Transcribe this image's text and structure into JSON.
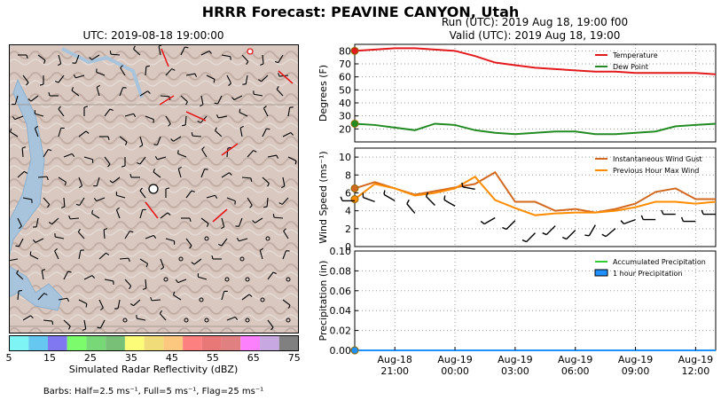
{
  "suptitle": "HRRR Forecast: PEAVINE CANYON, Utah",
  "map": {
    "title": "UTC: 2019-08-18 19:00:00",
    "colorbar": {
      "ticks": [
        "5",
        "15",
        "25",
        "35",
        "45",
        "55",
        "65",
        "75"
      ],
      "colors": [
        "#7ff4f4",
        "#66c8f0",
        "#8078f0",
        "#7cfc6c",
        "#78d878",
        "#78c078",
        "#fcfc78",
        "#f0dc78",
        "#fcc880",
        "#fc8080",
        "#e87878",
        "#e08080",
        "#fc80fc",
        "#c8a8e0",
        "#808080"
      ],
      "label": "Simulated Radar Reflectivity (dBZ)"
    },
    "barb_note": "Barbs: Half=2.5 ms⁻¹, Full=5 ms⁻¹, Flag=25 ms⁻¹"
  },
  "run": {
    "line1": "Run (UTC): 2019 Aug 18, 19:00 f00",
    "line2": "Valid (UTC): 2019 Aug 18, 19:00"
  },
  "chart_data": [
    {
      "type": "line",
      "ylabel": "Degrees (F)",
      "ylim": [
        10,
        85
      ],
      "yticks": [
        20,
        30,
        40,
        50,
        60,
        70,
        80
      ],
      "grid": true,
      "legend": "top-right",
      "series": [
        {
          "name": "Temperature",
          "color": "#e31a1c",
          "x": [
            0,
            1,
            2,
            3,
            4,
            5,
            6,
            7,
            8,
            9,
            10,
            11,
            12,
            13,
            14,
            15,
            16,
            17,
            18
          ],
          "values": [
            80,
            81,
            82,
            82,
            81,
            80,
            76,
            71,
            69,
            67,
            66,
            65,
            64,
            64,
            63,
            63,
            63,
            63,
            62
          ]
        },
        {
          "name": "Dew Point",
          "color": "#228b22",
          "x": [
            0,
            1,
            2,
            3,
            4,
            5,
            6,
            7,
            8,
            9,
            10,
            11,
            12,
            13,
            14,
            15,
            16,
            17,
            18
          ],
          "values": [
            24,
            23,
            21,
            19,
            24,
            23,
            19,
            17,
            16,
            17,
            18,
            18,
            16,
            16,
            17,
            18,
            22,
            23,
            24
          ]
        }
      ]
    },
    {
      "type": "line",
      "ylabel": "Wind Speed (ms⁻¹)",
      "ylim": [
        0,
        11
      ],
      "yticks": [
        0,
        2,
        4,
        6,
        8,
        10
      ],
      "grid": true,
      "legend": "top-right",
      "series": [
        {
          "name": "Instantaneous Wind Gust",
          "color": "#d2691e",
          "x": [
            0,
            1,
            2,
            3,
            4,
            5,
            6,
            7,
            8,
            9,
            10,
            11,
            12,
            13,
            14,
            15,
            16,
            17,
            18
          ],
          "values": [
            6.5,
            7.2,
            6.5,
            5.8,
            6.2,
            6.6,
            7.0,
            8.3,
            5.0,
            5.0,
            4.0,
            4.2,
            3.8,
            4.2,
            4.8,
            6.1,
            6.5,
            5.3,
            5.3
          ]
        },
        {
          "name": "Previous Hour Max Wind",
          "color": "#ff8c00",
          "x": [
            0,
            1,
            2,
            3,
            4,
            5,
            6,
            7,
            8,
            9,
            10,
            11,
            12,
            13,
            14,
            15,
            16,
            17,
            18
          ],
          "values": [
            5.3,
            7.0,
            6.5,
            5.7,
            6.0,
            6.5,
            7.8,
            5.2,
            4.3,
            3.5,
            3.7,
            3.8,
            3.8,
            4.0,
            4.4,
            5.0,
            5.0,
            4.8,
            5.0
          ]
        }
      ],
      "barbs": {
        "speeds": [
          6.5,
          7.0,
          6.5,
          5.7,
          6.0,
          6.5,
          7.8,
          5.2,
          4.3,
          3.5,
          3.7,
          3.8,
          3.8,
          4.0,
          4.4,
          5.0,
          5.0,
          4.8,
          5.0
        ],
        "directions_deg": [
          270,
          290,
          300,
          320,
          315,
          300,
          280,
          240,
          225,
          225,
          225,
          225,
          210,
          230,
          250,
          270,
          270,
          270,
          270
        ]
      }
    },
    {
      "type": "area",
      "ylabel": "Precipitation (in)",
      "ylim": [
        0,
        0.1
      ],
      "yticks": [
        "0.00",
        "0.02",
        "0.04",
        "0.06",
        "0.08",
        "0.10"
      ],
      "grid": true,
      "legend": "top-right",
      "xticks": [
        {
          "x": 2,
          "l1": "Aug-18",
          "l2": "21:00"
        },
        {
          "x": 5,
          "l1": "Aug-19",
          "l2": "00:00"
        },
        {
          "x": 8,
          "l1": "Aug-19",
          "l2": "03:00"
        },
        {
          "x": 11,
          "l1": "Aug-19",
          "l2": "06:00"
        },
        {
          "x": 14,
          "l1": "Aug-19",
          "l2": "09:00"
        },
        {
          "x": 17,
          "l1": "Aug-19",
          "l2": "12:00"
        }
      ],
      "series": [
        {
          "name": "Accumulated Precipitation",
          "color": "#32cd32",
          "x": [
            0,
            1,
            2,
            3,
            4,
            5,
            6,
            7,
            8,
            9,
            10,
            11,
            12,
            13,
            14,
            15,
            16,
            17,
            18
          ],
          "values": [
            0,
            0,
            0,
            0,
            0,
            0,
            0,
            0,
            0,
            0,
            0,
            0,
            0,
            0,
            0,
            0,
            0,
            0,
            0
          ]
        },
        {
          "name": "1 hour Precipitation",
          "color": "#1e90ff",
          "x": [
            0,
            1,
            2,
            3,
            4,
            5,
            6,
            7,
            8,
            9,
            10,
            11,
            12,
            13,
            14,
            15,
            16,
            17,
            18
          ],
          "values": [
            0,
            0,
            0,
            0,
            0,
            0,
            0,
            0,
            0,
            0,
            0,
            0,
            0,
            0,
            0,
            0,
            0,
            0,
            0
          ]
        }
      ]
    }
  ]
}
